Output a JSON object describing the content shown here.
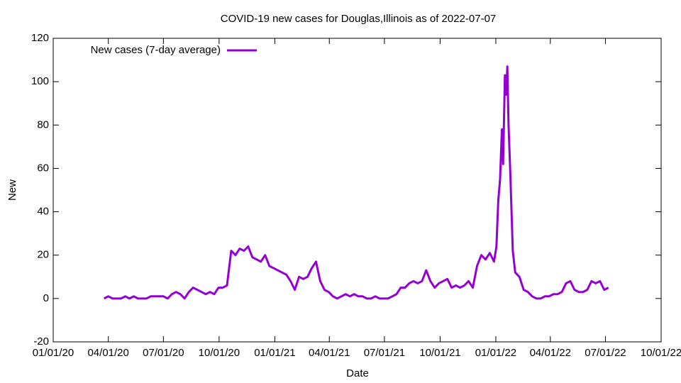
{
  "chart_data": {
    "type": "line",
    "title": "COVID-19 new cases for Douglas,Illinois as of 2022-07-07",
    "xlabel": "Date",
    "ylabel": "New",
    "x": [
      "2020-03-25",
      "2020-04-01",
      "2020-04-08",
      "2020-04-15",
      "2020-04-22",
      "2020-04-29",
      "2020-05-06",
      "2020-05-13",
      "2020-05-20",
      "2020-05-27",
      "2020-06-03",
      "2020-06-10",
      "2020-06-17",
      "2020-06-24",
      "2020-07-01",
      "2020-07-08",
      "2020-07-15",
      "2020-07-22",
      "2020-07-29",
      "2020-08-05",
      "2020-08-12",
      "2020-08-19",
      "2020-08-26",
      "2020-09-02",
      "2020-09-09",
      "2020-09-16",
      "2020-09-23",
      "2020-09-30",
      "2020-10-07",
      "2020-10-14",
      "2020-10-21",
      "2020-10-28",
      "2020-11-04",
      "2020-11-11",
      "2020-11-18",
      "2020-11-25",
      "2020-12-02",
      "2020-12-09",
      "2020-12-16",
      "2020-12-23",
      "2020-12-30",
      "2021-01-06",
      "2021-01-13",
      "2021-01-20",
      "2021-01-27",
      "2021-02-03",
      "2021-02-10",
      "2021-02-17",
      "2021-02-24",
      "2021-03-03",
      "2021-03-10",
      "2021-03-17",
      "2021-03-24",
      "2021-03-31",
      "2021-04-07",
      "2021-04-14",
      "2021-04-21",
      "2021-04-28",
      "2021-05-05",
      "2021-05-12",
      "2021-05-19",
      "2021-05-26",
      "2021-06-02",
      "2021-06-09",
      "2021-06-16",
      "2021-06-23",
      "2021-06-30",
      "2021-07-07",
      "2021-07-14",
      "2021-07-21",
      "2021-07-28",
      "2021-08-04",
      "2021-08-11",
      "2021-08-18",
      "2021-08-25",
      "2021-09-01",
      "2021-09-08",
      "2021-09-15",
      "2021-09-22",
      "2021-09-29",
      "2021-10-06",
      "2021-10-13",
      "2021-10-20",
      "2021-10-27",
      "2021-11-03",
      "2021-11-10",
      "2021-11-17",
      "2021-11-24",
      "2021-12-01",
      "2021-12-08",
      "2021-12-15",
      "2021-12-22",
      "2021-12-29",
      "2022-01-02",
      "2022-01-05",
      "2022-01-08",
      "2022-01-11",
      "2022-01-13",
      "2022-01-16",
      "2022-01-18",
      "2022-01-20",
      "2022-01-22",
      "2022-01-25",
      "2022-01-29",
      "2022-02-02",
      "2022-02-09",
      "2022-02-16",
      "2022-02-23",
      "2022-03-02",
      "2022-03-09",
      "2022-03-16",
      "2022-03-23",
      "2022-03-30",
      "2022-04-06",
      "2022-04-13",
      "2022-04-20",
      "2022-04-27",
      "2022-05-04",
      "2022-05-11",
      "2022-05-18",
      "2022-05-25",
      "2022-06-01",
      "2022-06-08",
      "2022-06-15",
      "2022-06-22",
      "2022-06-29",
      "2022-07-06"
    ],
    "series": [
      {
        "name": "New cases (7-day average)",
        "color": "#9400d3",
        "values": [
          0,
          1,
          0,
          0,
          0,
          1,
          0,
          1,
          0,
          0,
          0,
          1,
          1,
          1,
          1,
          0,
          2,
          3,
          2,
          0,
          3,
          5,
          4,
          3,
          2,
          3,
          2,
          5,
          5,
          6,
          22,
          20,
          23,
          22,
          24,
          19,
          18,
          17,
          20,
          15,
          14,
          13,
          12,
          11,
          8,
          4,
          10,
          9,
          10,
          14,
          17,
          8,
          4,
          3,
          1,
          0,
          1,
          2,
          1,
          2,
          1,
          1,
          0,
          0,
          1,
          0,
          0,
          0,
          1,
          2,
          5,
          5,
          7,
          8,
          7,
          8,
          13,
          8,
          5,
          7,
          8,
          9,
          5,
          6,
          5,
          6,
          8,
          5,
          15,
          20,
          18,
          21,
          17,
          24,
          45,
          55,
          78,
          62,
          103,
          94,
          107,
          80,
          57,
          22,
          12,
          10,
          4,
          3,
          1,
          0,
          0,
          1,
          1,
          2,
          2,
          3,
          7,
          8,
          4,
          3,
          3,
          4,
          8,
          7,
          8,
          4,
          5
        ]
      }
    ],
    "xlim": [
      "2020-01-01",
      "2022-10-01"
    ],
    "xticks": [
      {
        "value": "2020-01-01",
        "label": "01/01/20"
      },
      {
        "value": "2020-04-01",
        "label": "04/01/20"
      },
      {
        "value": "2020-07-01",
        "label": "07/01/20"
      },
      {
        "value": "2020-10-01",
        "label": "10/01/20"
      },
      {
        "value": "2021-01-01",
        "label": "01/01/21"
      },
      {
        "value": "2021-04-01",
        "label": "04/01/21"
      },
      {
        "value": "2021-07-01",
        "label": "07/01/21"
      },
      {
        "value": "2021-10-01",
        "label": "10/01/21"
      },
      {
        "value": "2022-01-01",
        "label": "01/01/22"
      },
      {
        "value": "2022-04-01",
        "label": "04/01/22"
      },
      {
        "value": "2022-07-01",
        "label": "07/01/22"
      },
      {
        "value": "2022-10-01",
        "label": "10/01/22"
      }
    ],
    "ylim": [
      -20,
      120
    ],
    "yticks": [
      -20,
      0,
      20,
      40,
      60,
      80,
      100,
      120
    ],
    "legend": "top-left"
  }
}
